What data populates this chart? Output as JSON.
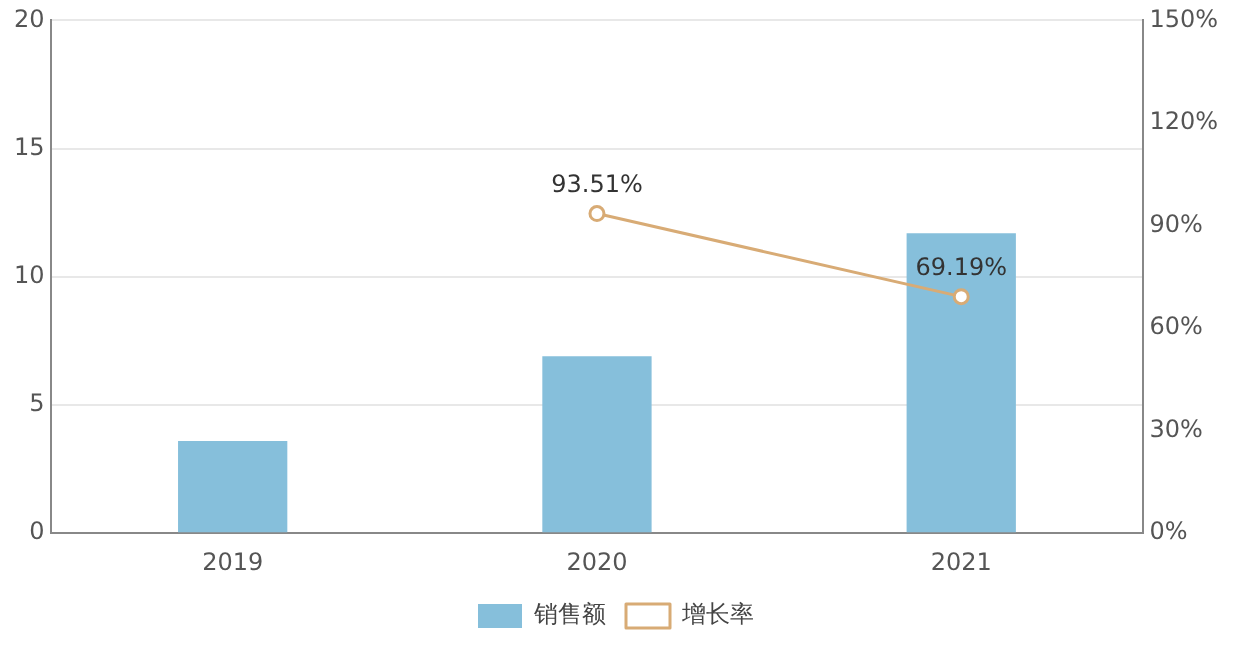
{
  "chart_data": {
    "type": "bar",
    "categories": [
      "2019",
      "2020",
      "2021"
    ],
    "series": [
      {
        "name": "销售额",
        "color": "#86bfdb",
        "values": [
          3.6,
          6.9,
          11.7
        ]
      },
      {
        "name": "增长率",
        "type": "line",
        "axis": "y2",
        "color": "#d8ab75",
        "values": [
          null,
          93.51,
          69.19
        ],
        "value_labels": [
          null,
          "93.51%",
          "69.19%"
        ]
      }
    ],
    "ylim": [
      0,
      20
    ],
    "yticks": [
      0,
      5,
      10,
      15,
      20
    ],
    "y2lim": [
      0,
      150
    ],
    "y2ticks": [
      {
        "value": 0,
        "label": "0%"
      },
      {
        "value": 30,
        "label": "30%"
      },
      {
        "value": 60,
        "label": "60%"
      },
      {
        "value": 90,
        "label": "90%"
      },
      {
        "value": 120,
        "label": "120%"
      },
      {
        "value": 150,
        "label": "150%"
      }
    ],
    "grid": "y",
    "legend": "bottom",
    "marker": "circle",
    "line_style": "solid"
  }
}
